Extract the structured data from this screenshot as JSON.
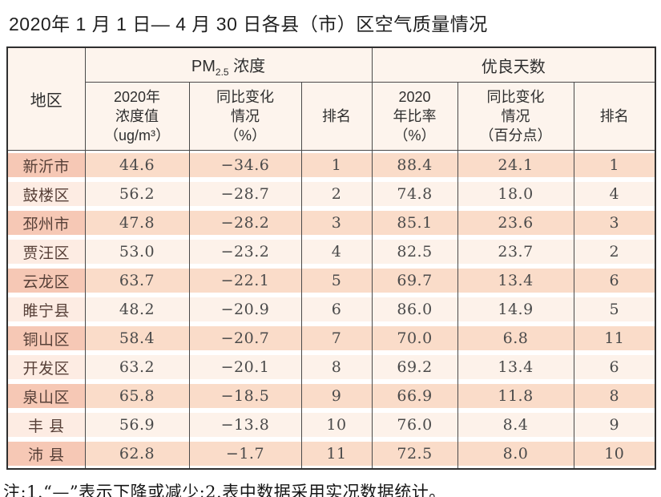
{
  "title": "2020年 1 月 1 日— 4 月 30 日各县（市）区空气质量情况",
  "note": "注:1.“—”表示下降或减少;2.表中数据采用实况数据统计。",
  "colors": {
    "row_dark_region": "#f6c8b5",
    "row_dark_data": "#fadcc9",
    "row_light_region": "#fdece3",
    "row_light_data": "#fdf2ea",
    "header_bg": "#fdf4ed",
    "border": "#4a4a4a"
  },
  "table": {
    "header": {
      "region": "地区",
      "pm_group_prefix": "PM",
      "pm_group_sub": "2.5",
      "pm_group_suffix": " 浓度",
      "good_group": "优良天数",
      "pm_value": "2020年\n浓度值\n（ug/m³）",
      "pm_change": "同比变化\n情况\n（%）",
      "pm_rank": "排名",
      "good_rate": "2020\n年比率\n（%）",
      "good_change": "同比变化\n情况\n（百分点）",
      "good_rank": "排名"
    },
    "rows": [
      {
        "region": "新沂市",
        "pm_value": "44.6",
        "pm_change": "−34.6",
        "pm_rank": "1",
        "good_rate": "88.4",
        "good_change": "24.1",
        "good_rank": "1"
      },
      {
        "region": "鼓楼区",
        "pm_value": "56.2",
        "pm_change": "−28.7",
        "pm_rank": "2",
        "good_rate": "74.8",
        "good_change": "18.0",
        "good_rank": "4"
      },
      {
        "region": "邳州市",
        "pm_value": "47.8",
        "pm_change": "−28.2",
        "pm_rank": "3",
        "good_rate": "85.1",
        "good_change": "23.6",
        "good_rank": "3"
      },
      {
        "region": "贾汪区",
        "pm_value": "53.0",
        "pm_change": "−23.2",
        "pm_rank": "4",
        "good_rate": "82.5",
        "good_change": "23.7",
        "good_rank": "2"
      },
      {
        "region": "云龙区",
        "pm_value": "63.7",
        "pm_change": "−22.1",
        "pm_rank": "5",
        "good_rate": "69.7",
        "good_change": "13.4",
        "good_rank": "6"
      },
      {
        "region": "睢宁县",
        "pm_value": "48.2",
        "pm_change": "−20.9",
        "pm_rank": "6",
        "good_rate": "86.0",
        "good_change": "14.9",
        "good_rank": "5"
      },
      {
        "region": "铜山区",
        "pm_value": "58.4",
        "pm_change": "−20.7",
        "pm_rank": "7",
        "good_rate": "70.0",
        "good_change": "6.8",
        "good_rank": "11"
      },
      {
        "region": "开发区",
        "pm_value": "63.2",
        "pm_change": "−20.1",
        "pm_rank": "8",
        "good_rate": "69.2",
        "good_change": "13.4",
        "good_rank": "6"
      },
      {
        "region": "泉山区",
        "pm_value": "65.8",
        "pm_change": "−18.5",
        "pm_rank": "9",
        "good_rate": "66.9",
        "good_change": "11.8",
        "good_rank": "8"
      },
      {
        "region": "丰 县",
        "pm_value": "56.9",
        "pm_change": "−13.8",
        "pm_rank": "10",
        "good_rate": "76.0",
        "good_change": "8.4",
        "good_rank": "9"
      },
      {
        "region": "沛 县",
        "pm_value": "62.8",
        "pm_change": "−1.7",
        "pm_rank": "11",
        "good_rate": "72.5",
        "good_change": "8.0",
        "good_rank": "10"
      }
    ]
  }
}
